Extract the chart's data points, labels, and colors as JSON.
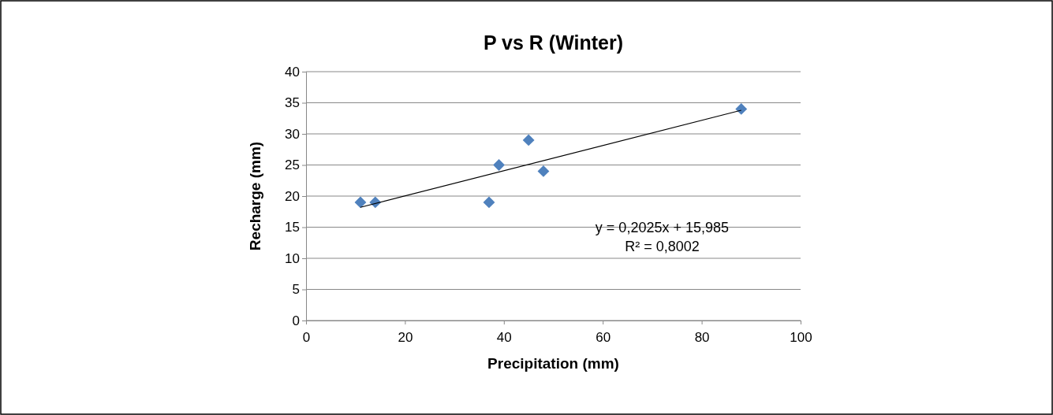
{
  "chart_data": {
    "type": "scatter",
    "title": "P vs R (Winter)",
    "xlabel": "Precipitation (mm)",
    "ylabel": "Recharge  (mm)",
    "xlim": [
      0,
      100
    ],
    "xticks": [
      0,
      20,
      40,
      60,
      80,
      100
    ],
    "ylim": [
      0,
      40
    ],
    "yticks": [
      0,
      5,
      10,
      15,
      20,
      25,
      30,
      35,
      40
    ],
    "grid": "y",
    "marker": "diamond",
    "series": [
      {
        "color": "#4f81bd",
        "x": [
          11,
          14,
          37,
          39,
          45,
          48,
          88
        ],
        "values": [
          19,
          19,
          19,
          25,
          29,
          24,
          34
        ]
      },
      {
        "type": "line",
        "color": "#000000",
        "x": [
          11,
          88
        ],
        "values": [
          18.2,
          33.8
        ],
        "marker": "none",
        "line_style": "solid"
      }
    ],
    "annotations": [
      "y = 0,2025x + 15,985",
      "R² = 0,8002"
    ]
  }
}
